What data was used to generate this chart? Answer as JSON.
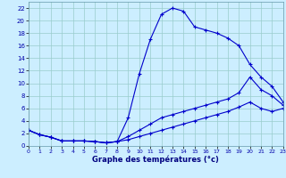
{
  "xlabel": "Graphe des températures (°c)",
  "x_ticks": [
    0,
    1,
    2,
    3,
    4,
    5,
    6,
    7,
    8,
    9,
    10,
    11,
    12,
    13,
    14,
    15,
    16,
    17,
    18,
    19,
    20,
    21,
    22,
    23
  ],
  "ylim": [
    0,
    23
  ],
  "xlim": [
    0,
    23
  ],
  "yticks": [
    0,
    2,
    4,
    6,
    8,
    10,
    12,
    14,
    16,
    18,
    20,
    22
  ],
  "background_color": "#cceeff",
  "line_color": "#0000cc",
  "grid_color": "#99cccc",
  "line2_x": [
    0,
    1,
    2,
    3,
    4,
    5,
    6,
    7,
    8,
    9,
    10,
    11,
    12,
    13,
    14,
    15,
    16,
    17,
    18,
    19,
    20,
    21,
    22,
    23
  ],
  "line2_y": [
    2.5,
    1.8,
    1.4,
    0.8,
    0.8,
    0.8,
    0.7,
    0.5,
    0.7,
    4.5,
    11.5,
    17,
    21,
    22,
    21.5,
    19,
    18.5,
    18,
    17.2,
    16,
    13,
    11,
    9.5,
    7
  ],
  "line3_x": [
    0,
    1,
    2,
    3,
    4,
    5,
    6,
    7,
    8,
    9,
    10,
    11,
    12,
    13,
    14,
    15,
    16,
    17,
    18,
    19,
    20,
    21,
    22,
    23
  ],
  "line3_y": [
    2.5,
    1.8,
    1.4,
    0.8,
    0.8,
    0.8,
    0.7,
    0.5,
    0.7,
    1.5,
    2.5,
    3.5,
    4.5,
    5,
    5.5,
    6,
    6.5,
    7,
    7.5,
    8.5,
    11,
    9,
    8,
    6.5
  ],
  "line4_x": [
    0,
    1,
    2,
    3,
    4,
    5,
    6,
    7,
    8,
    9,
    10,
    11,
    12,
    13,
    14,
    15,
    16,
    17,
    18,
    19,
    20,
    21,
    22,
    23
  ],
  "line4_y": [
    2.5,
    1.8,
    1.4,
    0.8,
    0.8,
    0.8,
    0.7,
    0.5,
    0.7,
    1.0,
    1.5,
    2.0,
    2.5,
    3.0,
    3.5,
    4.0,
    4.5,
    5.0,
    5.5,
    6.2,
    7.0,
    6.0,
    5.5,
    6.0
  ]
}
